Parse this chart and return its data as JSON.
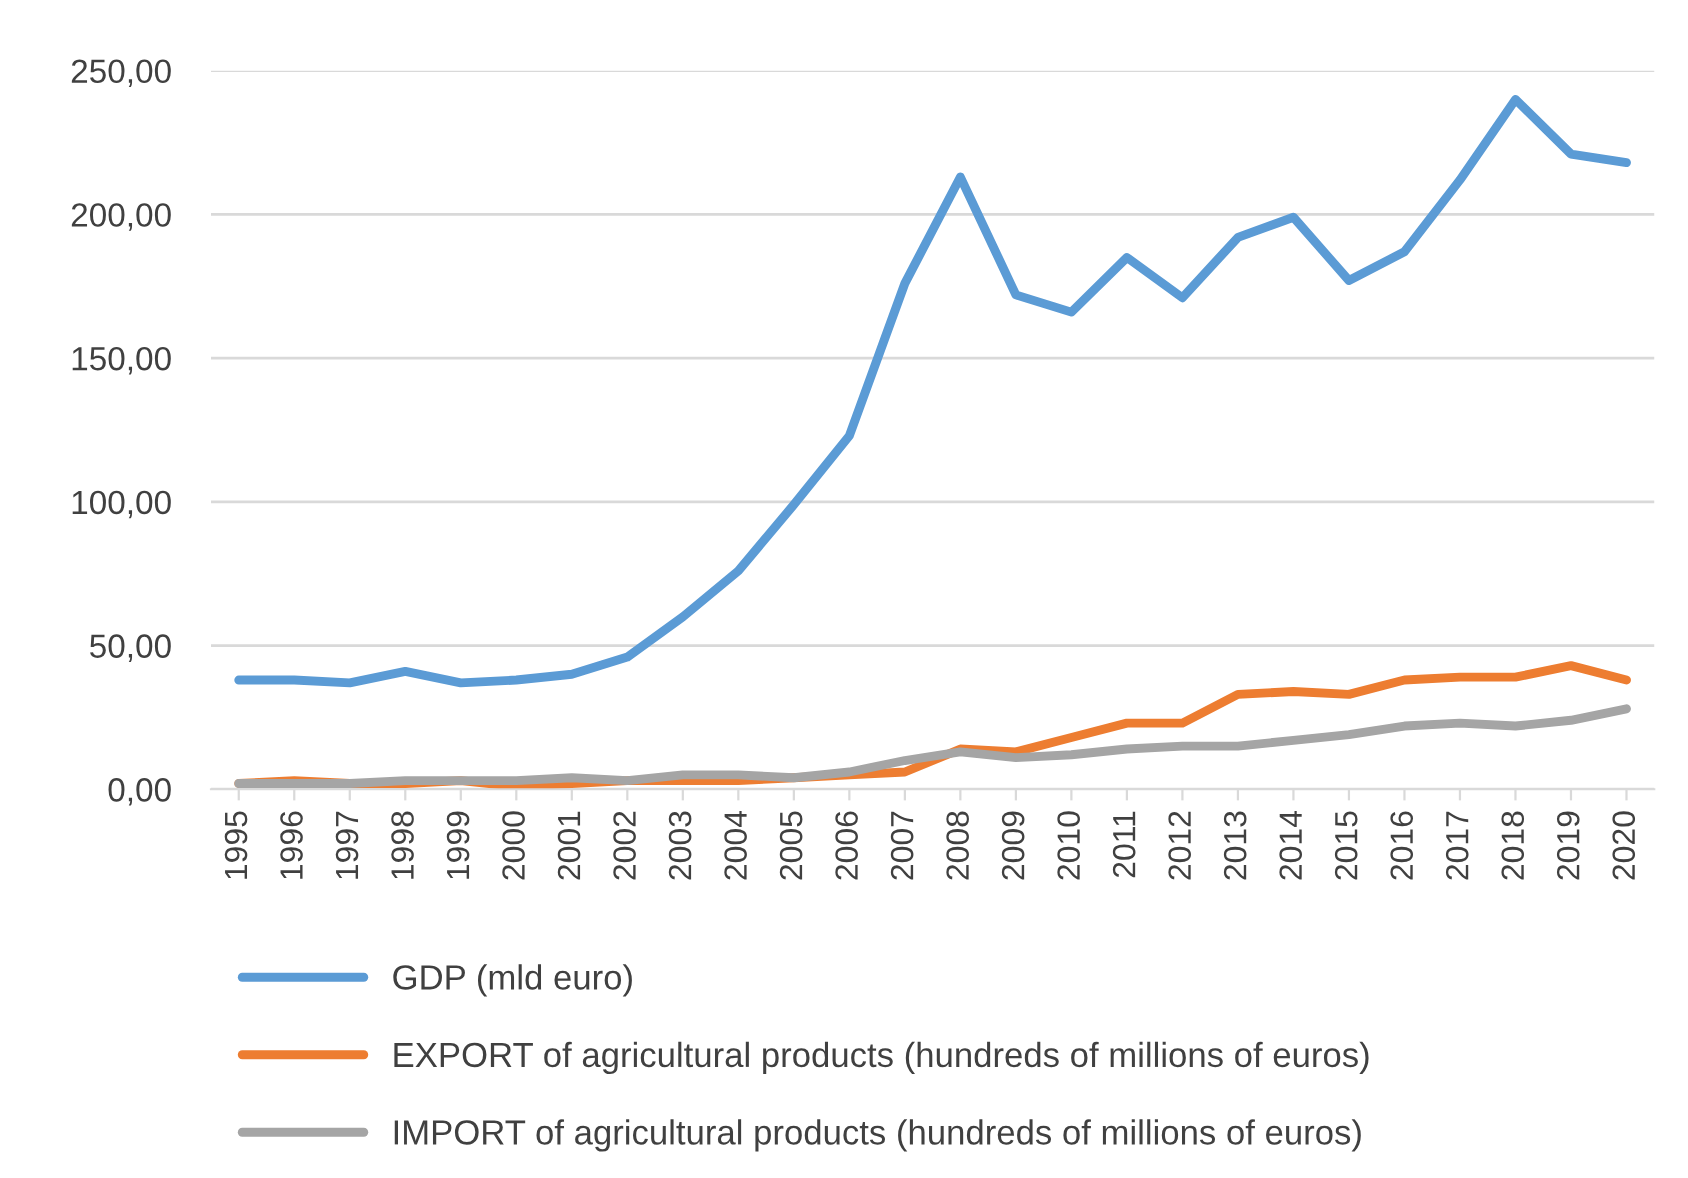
{
  "chart_data": {
    "type": "line",
    "categories": [
      "1995",
      "1996",
      "1997",
      "1998",
      "1999",
      "2000",
      "2001",
      "2002",
      "2003",
      "2004",
      "2005",
      "2006",
      "2007",
      "2008",
      "2009",
      "2010",
      "2011",
      "2012",
      "2013",
      "2014",
      "2015",
      "2016",
      "2017",
      "2018",
      "2019",
      "2020"
    ],
    "series": [
      {
        "name": "GDP (mld euro)",
        "color": "#5b9bd5",
        "values": [
          38,
          38,
          37,
          41,
          37,
          38,
          40,
          46,
          60,
          76,
          99,
          123,
          176,
          213,
          172,
          166,
          185,
          171,
          192,
          199,
          177,
          187,
          212,
          240,
          221,
          218
        ]
      },
      {
        "name": "EXPORT of agricultural products (hundreds of millions of euros)",
        "color": "#ed7d31",
        "values": [
          2,
          3,
          2,
          2,
          3,
          1,
          2,
          3,
          3,
          3,
          4,
          5,
          6,
          14,
          13,
          18,
          23,
          23,
          33,
          34,
          33,
          38,
          39,
          39,
          43,
          38
        ]
      },
      {
        "name": "IMPORT of agricultural products (hundreds of millions of euros)",
        "color": "#a5a5a5",
        "values": [
          2,
          2,
          2,
          3,
          3,
          3,
          4,
          3,
          5,
          5,
          4,
          6,
          10,
          13,
          11,
          12,
          14,
          15,
          15,
          17,
          19,
          22,
          23,
          22,
          24,
          28
        ]
      }
    ],
    "ylim": [
      0,
      250
    ],
    "yticks": [
      {
        "value": 0,
        "label": "0,00"
      },
      {
        "value": 50,
        "label": "50,00"
      },
      {
        "value": 100,
        "label": "100,00"
      },
      {
        "value": 150,
        "label": "150,00"
      },
      {
        "value": 200,
        "label": "200,00"
      },
      {
        "value": 250,
        "label": "250,00"
      }
    ],
    "grid": "y",
    "legend": "bottom",
    "marker": "none",
    "line_style": "solid"
  }
}
